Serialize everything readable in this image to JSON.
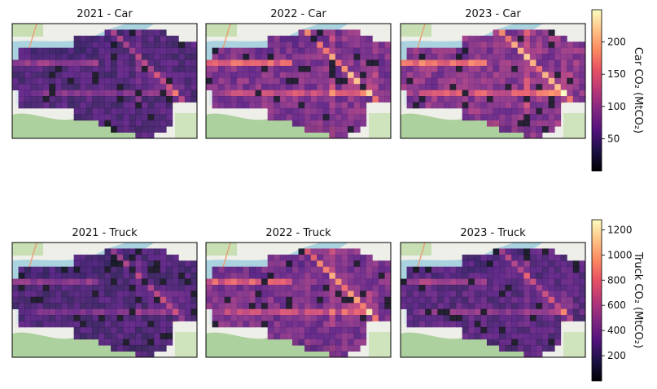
{
  "chart_data": {
    "type": "heatmap",
    "colormap": "magma",
    "basemap": "map tiles",
    "grid": {
      "cols": 30,
      "rows": 19
    },
    "rows": [
      {
        "vehicle": "Car",
        "colorbar": {
          "label": "Car CO₂ (MtCO₂)",
          "range": [
            0,
            250
          ],
          "ticks": [
            50,
            100,
            150,
            200
          ]
        },
        "panels": [
          {
            "title": "2021 - Car",
            "scale": 0.55
          },
          {
            "title": "2022 - Car",
            "scale": 0.85
          },
          {
            "title": "2023 - Car",
            "scale": 0.92
          }
        ]
      },
      {
        "vehicle": "Truck",
        "colorbar": {
          "label": "Truck CO₂ (MtCO₂)",
          "range": [
            0,
            1280
          ],
          "ticks": [
            200,
            400,
            600,
            800,
            1000,
            1200
          ]
        },
        "panels": [
          {
            "title": "2021 - Truck",
            "scale": 0.52
          },
          {
            "title": "2022 - Truck",
            "scale": 0.82
          },
          {
            "title": "2023 - Truck",
            "scale": 0.6
          }
        ]
      }
    ]
  }
}
